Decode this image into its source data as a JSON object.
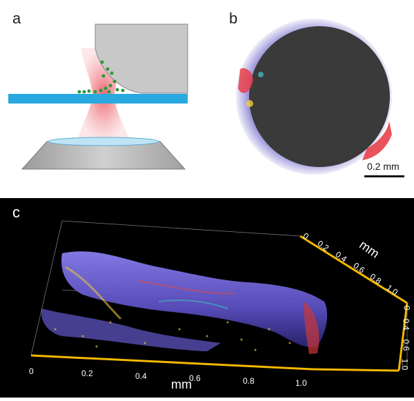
{
  "figure": {
    "panel_a": {
      "label": "a"
    },
    "panel_b": {
      "label": "b",
      "scale_bar_label": "0.2 mm"
    },
    "panel_c": {
      "label": "c",
      "x_axis": {
        "unit": "mm",
        "ticks": [
          "0",
          "0.2",
          "0.4",
          "0.6",
          "0.8",
          "1.0"
        ]
      },
      "y_axis": {
        "unit": "mm",
        "ticks": [
          "0",
          "0.2",
          "0.4",
          "0.6",
          "0.8",
          "1.0"
        ]
      },
      "z_axis": {
        "ticks": [
          "0",
          "0.4",
          "0.6",
          "1.0"
        ]
      },
      "axis_color": "#f5b800"
    }
  }
}
